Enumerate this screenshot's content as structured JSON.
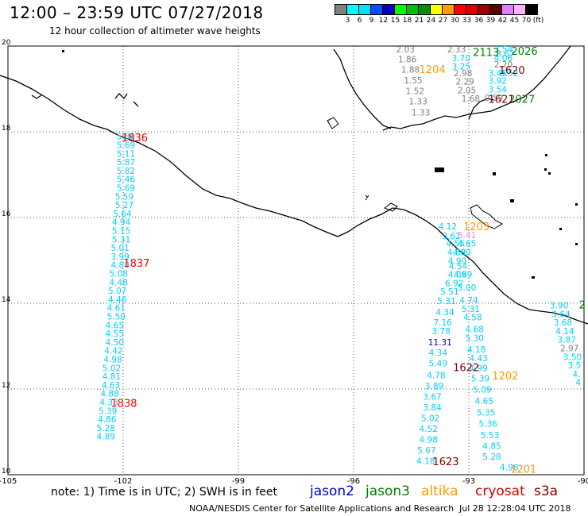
{
  "header": {
    "title": "12:00 – 23:59 UTC 07/27/2018",
    "subtitle": "12 hour collection of altimeter wave heights"
  },
  "color_scale": {
    "colors": [
      "#808080",
      "#00ffff",
      "#00e0ff",
      "#0050ff",
      "#0000c0",
      "#00ff00",
      "#00c000",
      "#009000",
      "#ffff00",
      "#ffa000",
      "#ff0000",
      "#e00000",
      "#a00000",
      "#600000",
      "#e080ff",
      "#ffb0ff",
      "#000000"
    ],
    "labels": [
      "3",
      "6",
      "9",
      "12",
      "15",
      "18",
      "21",
      "24",
      "27",
      "30",
      "33",
      "36",
      "39",
      "42",
      "45",
      "70",
      "(ft)"
    ]
  },
  "axes": {
    "lon_ticks": [
      "-105",
      "-102",
      "-99",
      "-96",
      "-93",
      "-90"
    ],
    "lat_ticks": [
      "20",
      "18",
      "16",
      "14",
      "12",
      "10"
    ]
  },
  "readings": [
    {
      "text": "5.86",
      "lon": -101.93,
      "lat": 17.82,
      "color": "#00cfff"
    },
    {
      "text": "5.69",
      "lon": -101.93,
      "lat": 17.62,
      "color": "#00cfff"
    },
    {
      "text": "5.11",
      "lon": -101.93,
      "lat": 17.42,
      "color": "#00cfff"
    },
    {
      "text": "5.87",
      "lon": -101.93,
      "lat": 17.22,
      "color": "#00cfff"
    },
    {
      "text": "5.82",
      "lon": -101.93,
      "lat": 17.02,
      "color": "#00cfff"
    },
    {
      "text": "5.46",
      "lon": -101.93,
      "lat": 16.82,
      "color": "#00cfff"
    },
    {
      "text": "5.69",
      "lon": -101.93,
      "lat": 16.62,
      "color": "#00cfff"
    },
    {
      "text": "5.59",
      "lon": -101.97,
      "lat": 16.42,
      "color": "#00cfff"
    },
    {
      "text": "5.27",
      "lon": -101.97,
      "lat": 16.22,
      "color": "#00cfff"
    },
    {
      "text": "5.64",
      "lon": -102.02,
      "lat": 16.02,
      "color": "#00cfff"
    },
    {
      "text": "4.94",
      "lon": -102.05,
      "lat": 15.82,
      "color": "#00cfff"
    },
    {
      "text": "5.15",
      "lon": -102.05,
      "lat": 15.62,
      "color": "#00cfff"
    },
    {
      "text": "5.31",
      "lon": -102.05,
      "lat": 15.42,
      "color": "#00cfff"
    },
    {
      "text": "5.01",
      "lon": -102.08,
      "lat": 15.22,
      "color": "#00cfff"
    },
    {
      "text": "3.99",
      "lon": -102.08,
      "lat": 15.02,
      "color": "#00cfff"
    },
    {
      "text": "4.80",
      "lon": -102.08,
      "lat": 14.82,
      "color": "#00cfff"
    },
    {
      "text": "5.08",
      "lon": -102.12,
      "lat": 14.62,
      "color": "#00cfff"
    },
    {
      "text": "4.48",
      "lon": -102.12,
      "lat": 14.42,
      "color": "#00cfff"
    },
    {
      "text": "5.07",
      "lon": -102.15,
      "lat": 14.22,
      "color": "#00cfff"
    },
    {
      "text": "4.46",
      "lon": -102.15,
      "lat": 14.02,
      "color": "#00cfff"
    },
    {
      "text": "4.61",
      "lon": -102.18,
      "lat": 13.82,
      "color": "#00cfff"
    },
    {
      "text": "5.50",
      "lon": -102.18,
      "lat": 13.62,
      "color": "#00cfff"
    },
    {
      "text": "4.65",
      "lon": -102.22,
      "lat": 13.42,
      "color": "#00cfff"
    },
    {
      "text": "4.55",
      "lon": -102.22,
      "lat": 13.22,
      "color": "#00cfff"
    },
    {
      "text": "4.50",
      "lon": -102.22,
      "lat": 13.02,
      "color": "#00cfff"
    },
    {
      "text": "4.42",
      "lon": -102.25,
      "lat": 12.82,
      "color": "#00cfff"
    },
    {
      "text": "4.98",
      "lon": -102.27,
      "lat": 12.62,
      "color": "#00cfff"
    },
    {
      "text": "5.02",
      "lon": -102.3,
      "lat": 12.42,
      "color": "#00cfff"
    },
    {
      "text": "4.81",
      "lon": -102.3,
      "lat": 12.22,
      "color": "#00cfff"
    },
    {
      "text": "4.63",
      "lon": -102.32,
      "lat": 12.02,
      "color": "#00cfff"
    },
    {
      "text": "4.88",
      "lon": -102.35,
      "lat": 11.82,
      "color": "#00cfff"
    },
    {
      "text": "4.33",
      "lon": -102.37,
      "lat": 11.62,
      "color": "#00cfff"
    },
    {
      "text": "5.39",
      "lon": -102.4,
      "lat": 11.42,
      "color": "#00cfff"
    },
    {
      "text": "4.86",
      "lon": -102.42,
      "lat": 11.22,
      "color": "#00cfff"
    },
    {
      "text": "5.28",
      "lon": -102.45,
      "lat": 11.02,
      "color": "#00cfff"
    },
    {
      "text": "4.89",
      "lon": -102.45,
      "lat": 10.82,
      "color": "#00cfff"
    },
    {
      "text": "2.03",
      "lon": -94.65,
      "lat": 19.85,
      "color": "#808080"
    },
    {
      "text": "1.86",
      "lon": -94.6,
      "lat": 19.62,
      "color": "#808080"
    },
    {
      "text": "1.88",
      "lon": -94.52,
      "lat": 19.38,
      "color": "#808080"
    },
    {
      "text": "1.55",
      "lon": -94.45,
      "lat": 19.13,
      "color": "#808080"
    },
    {
      "text": "1.52",
      "lon": -94.4,
      "lat": 18.88,
      "color": "#808080"
    },
    {
      "text": "1.33",
      "lon": -94.32,
      "lat": 18.64,
      "color": "#808080"
    },
    {
      "text": "1.33",
      "lon": -94.25,
      "lat": 18.38,
      "color": "#808080"
    },
    {
      "text": "2.33",
      "lon": -93.32,
      "lat": 19.85,
      "color": "#808080"
    },
    {
      "text": "2.98",
      "lon": -93.15,
      "lat": 19.3,
      "color": "#808080"
    },
    {
      "text": "2.29",
      "lon": -93.1,
      "lat": 19.1,
      "color": "#808080"
    },
    {
      "text": "2.05",
      "lon": -93.05,
      "lat": 18.9,
      "color": "#808080"
    },
    {
      "text": "1.68",
      "lon": -92.95,
      "lat": 18.7,
      "color": "#808080"
    },
    {
      "text": "0.59",
      "lon": -92.35,
      "lat": 18.72,
      "color": "#808080"
    },
    {
      "text": "2.20",
      "lon": -92.1,
      "lat": 19.5,
      "color": "#808080"
    },
    {
      "text": "3.70",
      "lon": -93.2,
      "lat": 19.65,
      "color": "#00cfff"
    },
    {
      "text": "3.25",
      "lon": -93.2,
      "lat": 19.45,
      "color": "#00cfff"
    },
    {
      "text": "3.54",
      "lon": -92.1,
      "lat": 19.85,
      "color": "#00cfff"
    },
    {
      "text": "3.67",
      "lon": -92.05,
      "lat": 19.75,
      "color": "#00cfff"
    },
    {
      "text": "4.06",
      "lon": -92.1,
      "lat": 19.65,
      "color": "#00cfff"
    },
    {
      "text": "3.45",
      "lon": -92.25,
      "lat": 19.3,
      "color": "#00cfff"
    },
    {
      "text": "3.52",
      "lon": -91.95,
      "lat": 19.3,
      "color": "#00cfff"
    },
    {
      "text": "3.92",
      "lon": -92.25,
      "lat": 19.12,
      "color": "#00cfff"
    },
    {
      "text": "3.54",
      "lon": -92.25,
      "lat": 18.92,
      "color": "#00cfff"
    },
    {
      "text": "4.12",
      "lon": -93.55,
      "lat": 15.72,
      "color": "#00cfff"
    },
    {
      "text": "3.62",
      "lon": -93.45,
      "lat": 15.5,
      "color": "#00cfff"
    },
    {
      "text": "4.55",
      "lon": -93.35,
      "lat": 15.32,
      "color": "#00cfff"
    },
    {
      "text": "4.65",
      "lon": -93.05,
      "lat": 15.32,
      "color": "#00cfff"
    },
    {
      "text": "4.80",
      "lon": -93.32,
      "lat": 15.12,
      "color": "#00cfff"
    },
    {
      "text": "4.80",
      "lon": -93.18,
      "lat": 15.12,
      "color": "#00cfff"
    },
    {
      "text": "4.90",
      "lon": -93.3,
      "lat": 14.92,
      "color": "#00cfff"
    },
    {
      "text": "4.54",
      "lon": -93.28,
      "lat": 14.8,
      "color": "#00cfff"
    },
    {
      "text": "4.09",
      "lon": -93.3,
      "lat": 14.6,
      "color": "#00cfff"
    },
    {
      "text": "4.69",
      "lon": -93.15,
      "lat": 14.6,
      "color": "#00cfff"
    },
    {
      "text": "6.92",
      "lon": -93.38,
      "lat": 14.4,
      "color": "#00cfff"
    },
    {
      "text": "5.00",
      "lon": -93.05,
      "lat": 14.3,
      "color": "#00cfff"
    },
    {
      "text": "5.51",
      "lon": -93.5,
      "lat": 14.2,
      "color": "#00cfff"
    },
    {
      "text": "4.74",
      "lon": -93.0,
      "lat": 14.0,
      "color": "#00cfff"
    },
    {
      "text": "5.31",
      "lon": -93.58,
      "lat": 13.98,
      "color": "#00cfff"
    },
    {
      "text": "5.31",
      "lon": -92.95,
      "lat": 13.8,
      "color": "#00cfff"
    },
    {
      "text": "4.34",
      "lon": -93.62,
      "lat": 13.72,
      "color": "#00cfff"
    },
    {
      "text": "4.58",
      "lon": -92.9,
      "lat": 13.6,
      "color": "#00cfff"
    },
    {
      "text": "7.16",
      "lon": -93.68,
      "lat": 13.48,
      "color": "#00cfff"
    },
    {
      "text": "4.68",
      "lon": -92.85,
      "lat": 13.32,
      "color": "#00cfff"
    },
    {
      "text": "3.78",
      "lon": -93.72,
      "lat": 13.28,
      "color": "#00cfff"
    },
    {
      "text": "5.30",
      "lon": -92.85,
      "lat": 13.12,
      "color": "#00cfff"
    },
    {
      "text": "11.31",
      "lon": -93.75,
      "lat": 13.02,
      "color": "#0000c0"
    },
    {
      "text": "4.18",
      "lon": -92.8,
      "lat": 12.85,
      "color": "#00cfff"
    },
    {
      "text": "4.34",
      "lon": -93.8,
      "lat": 12.78,
      "color": "#00cfff"
    },
    {
      "text": "4.43",
      "lon": -92.75,
      "lat": 12.65,
      "color": "#00cfff"
    },
    {
      "text": "5.49",
      "lon": -93.8,
      "lat": 12.53,
      "color": "#00cfff"
    },
    {
      "text": "4.99",
      "lon": -92.75,
      "lat": 12.42,
      "color": "#00cfff"
    },
    {
      "text": "4.78",
      "lon": -93.85,
      "lat": 12.25,
      "color": "#00cfff"
    },
    {
      "text": "5.39",
      "lon": -92.7,
      "lat": 12.18,
      "color": "#00cfff"
    },
    {
      "text": "3.89",
      "lon": -93.9,
      "lat": 12.0,
      "color": "#00cfff"
    },
    {
      "text": "5.09",
      "lon": -92.65,
      "lat": 11.92,
      "color": "#00cfff"
    },
    {
      "text": "3.67",
      "lon": -93.95,
      "lat": 11.75,
      "color": "#00cfff"
    },
    {
      "text": "4.65",
      "lon": -92.6,
      "lat": 11.65,
      "color": "#00cfff"
    },
    {
      "text": "3.84",
      "lon": -93.95,
      "lat": 11.5,
      "color": "#00cfff"
    },
    {
      "text": "5.35",
      "lon": -92.55,
      "lat": 11.38,
      "color": "#00cfff"
    },
    {
      "text": "5.02",
      "lon": -94.0,
      "lat": 11.25,
      "color": "#00cfff"
    },
    {
      "text": "5.36",
      "lon": -92.5,
      "lat": 11.12,
      "color": "#00cfff"
    },
    {
      "text": "4.52",
      "lon": -94.05,
      "lat": 11.0,
      "color": "#00cfff"
    },
    {
      "text": "5.53",
      "lon": -92.45,
      "lat": 10.85,
      "color": "#00cfff"
    },
    {
      "text": "4.98",
      "lon": -94.05,
      "lat": 10.75,
      "color": "#00cfff"
    },
    {
      "text": "4.85",
      "lon": -92.4,
      "lat": 10.6,
      "color": "#00cfff"
    },
    {
      "text": "5.67",
      "lon": -94.1,
      "lat": 10.5,
      "color": "#00cfff"
    },
    {
      "text": "5.28",
      "lon": -92.4,
      "lat": 10.35,
      "color": "#00cfff"
    },
    {
      "text": "4.18",
      "lon": -94.12,
      "lat": 10.25,
      "color": "#00cfff"
    },
    {
      "text": "4.96",
      "lon": -91.95,
      "lat": 10.1,
      "color": "#00cfff"
    },
    {
      "text": "5.41",
      "lon": -93.05,
      "lat": 15.52,
      "color": "#ff80ff"
    },
    {
      "text": "3.90",
      "lon": -90.65,
      "lat": 13.88,
      "color": "#00cfff"
    },
    {
      "text": "3.64",
      "lon": -90.6,
      "lat": 13.68,
      "color": "#00cfff"
    },
    {
      "text": "3.68",
      "lon": -90.55,
      "lat": 13.48,
      "color": "#00cfff"
    },
    {
      "text": "4.14",
      "lon": -90.5,
      "lat": 13.28,
      "color": "#00cfff"
    },
    {
      "text": "3.87",
      "lon": -90.45,
      "lat": 13.08,
      "color": "#00cfff"
    },
    {
      "text": "2.97",
      "lon": -90.38,
      "lat": 12.88,
      "color": "#808080"
    },
    {
      "text": "3.50",
      "lon": -90.3,
      "lat": 12.68,
      "color": "#00cfff"
    },
    {
      "text": "3.5",
      "lon": -90.25,
      "lat": 12.48,
      "color": "#00cfff"
    },
    {
      "text": "4.",
      "lon": -90.2,
      "lat": 12.28,
      "color": "#00cfff"
    },
    {
      "text": "4",
      "lon": -90.15,
      "lat": 12.08,
      "color": "#00cfff"
    }
  ],
  "pass_labels": [
    {
      "text": "1836",
      "lon": -101.7,
      "lat": 17.78,
      "color": "#ff0000"
    },
    {
      "text": "1837",
      "lon": -101.65,
      "lat": 14.85,
      "color": "#ff0000"
    },
    {
      "text": "1838",
      "lon": -101.98,
      "lat": 11.58,
      "color": "#ff0000"
    },
    {
      "text": "2113",
      "lon": -92.55,
      "lat": 19.77,
      "color": "#008000"
    },
    {
      "text": "2026",
      "lon": -91.55,
      "lat": 19.8,
      "color": "#008000"
    },
    {
      "text": "2027",
      "lon": -91.62,
      "lat": 18.68,
      "color": "#008000"
    },
    {
      "text": "2",
      "lon": -90.05,
      "lat": 13.88,
      "color": "#008000"
    },
    {
      "text": "1204",
      "lon": -93.95,
      "lat": 19.37,
      "color": "#ff9900"
    },
    {
      "text": "1203",
      "lon": -92.8,
      "lat": 15.7,
      "color": "#ff9900"
    },
    {
      "text": "1202",
      "lon": -92.05,
      "lat": 12.22,
      "color": "#ff9900"
    },
    {
      "text": "1201",
      "lon": -91.58,
      "lat": 10.05,
      "color": "#ff9900"
    },
    {
      "text": "1620",
      "lon": -91.88,
      "lat": 19.35,
      "color": "#800000"
    },
    {
      "text": "1621",
      "lon": -92.15,
      "lat": 18.68,
      "color": "#800000"
    },
    {
      "text": "1622",
      "lon": -93.07,
      "lat": 12.42,
      "color": "#800000"
    },
    {
      "text": "1623",
      "lon": -93.6,
      "lat": 10.22,
      "color": "#800000"
    }
  ],
  "footer": {
    "note": "note:  1) Time is in UTC;  2) SWH is in feet",
    "satellites": [
      {
        "name": "jason2",
        "color": "#0000cc"
      },
      {
        "name": "jason3",
        "color": "#008000"
      },
      {
        "name": "altika",
        "color": "#ff9900"
      },
      {
        "name": "cryosat",
        "color": "#cc0000"
      },
      {
        "name": "s3a",
        "color": "#800000"
      }
    ],
    "credit": "NOAA/NESDIS Center for Satellite Applications and Research",
    "timestamp": "Jul 28 12:28:04 UTC 2018"
  }
}
